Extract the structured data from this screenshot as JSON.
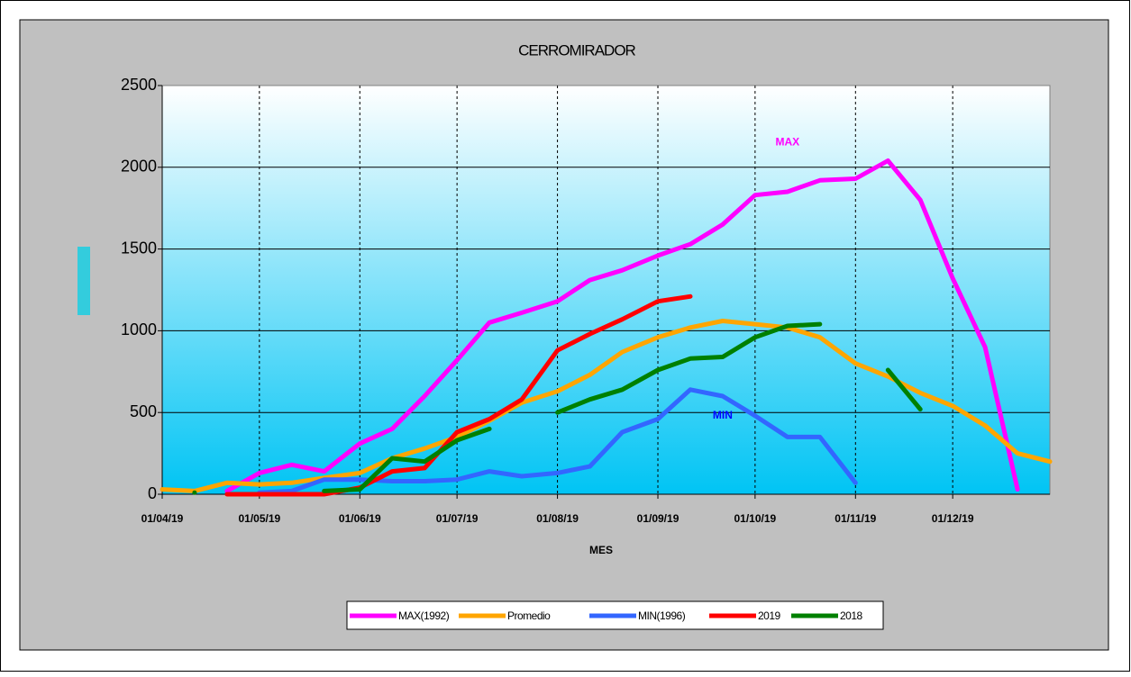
{
  "chart_data": {
    "type": "line",
    "title": "CERROMIRADOR",
    "x_label": "MES",
    "x": [
      "01/04/19",
      "11/04/19",
      "21/04/19",
      "01/05/19",
      "11/05/19",
      "21/05/19",
      "01/06/19",
      "11/06/19",
      "21/06/19",
      "01/07/19",
      "11/07/19",
      "21/07/19",
      "01/08/19",
      "11/08/19",
      "21/08/19",
      "01/09/19",
      "11/09/19",
      "21/09/19",
      "01/10/19",
      "11/10/19",
      "21/10/19",
      "01/11/19",
      "11/11/19",
      "21/11/19",
      "01/12/19",
      "11/12/19",
      "21/12/19",
      "31/12/19"
    ],
    "series": [
      {
        "name": "MAX(1992)",
        "color": "#ff00ff",
        "values": [
          null,
          null,
          20,
          130,
          180,
          140,
          310,
          400,
          600,
          820,
          1050,
          1110,
          1180,
          1310,
          1370,
          1460,
          1530,
          1650,
          1830,
          1850,
          1920,
          1930,
          2040,
          1800,
          1320,
          900,
          30,
          null
        ]
      },
      {
        "name": "Promedio",
        "color": "#ffa500",
        "values": [
          30,
          20,
          70,
          60,
          70,
          100,
          130,
          220,
          280,
          350,
          450,
          560,
          630,
          730,
          870,
          960,
          1020,
          1060,
          1040,
          1020,
          960,
          800,
          720,
          620,
          540,
          420,
          250,
          200
        ]
      },
      {
        "name": "MIN(1996)",
        "color": "#3366ff",
        "values": [
          null,
          null,
          null,
          10,
          20,
          90,
          90,
          80,
          80,
          90,
          140,
          110,
          130,
          170,
          380,
          460,
          640,
          600,
          480,
          350,
          350,
          70,
          null,
          null,
          null,
          null,
          null,
          null
        ]
      },
      {
        "name": "2019",
        "color": "#ff0000",
        "values": [
          null,
          null,
          0,
          0,
          0,
          0,
          40,
          140,
          160,
          380,
          460,
          580,
          880,
          980,
          1070,
          1180,
          1210,
          null,
          null,
          null,
          null,
          null,
          null,
          null,
          null,
          null,
          null,
          null
        ]
      },
      {
        "name": "2018",
        "color": "#008000",
        "values": [
          null,
          10,
          null,
          null,
          null,
          20,
          30,
          220,
          200,
          330,
          400,
          null,
          500,
          580,
          640,
          760,
          830,
          840,
          960,
          1030,
          1040,
          null,
          760,
          520,
          null,
          null,
          null,
          null
        ]
      }
    ],
    "xlim": [
      "01/04/19",
      "31/12/19"
    ],
    "xticks": [
      "01/04/19",
      "01/05/19",
      "01/06/19",
      "01/07/19",
      "01/08/19",
      "01/09/19",
      "01/10/19",
      "01/11/19",
      "01/12/19"
    ],
    "ylim": [
      0,
      2500
    ],
    "yticks": [
      0,
      500,
      1000,
      1500,
      2000,
      2500
    ],
    "annotations": [
      {
        "text": "MAX",
        "x": "11/10/19",
        "y": 2150,
        "color": "#ff00ff"
      },
      {
        "text": "MIN",
        "x": "21/09/19",
        "y": 480,
        "color": "#0000ff"
      }
    ],
    "grid": true,
    "legend": "bottom"
  }
}
